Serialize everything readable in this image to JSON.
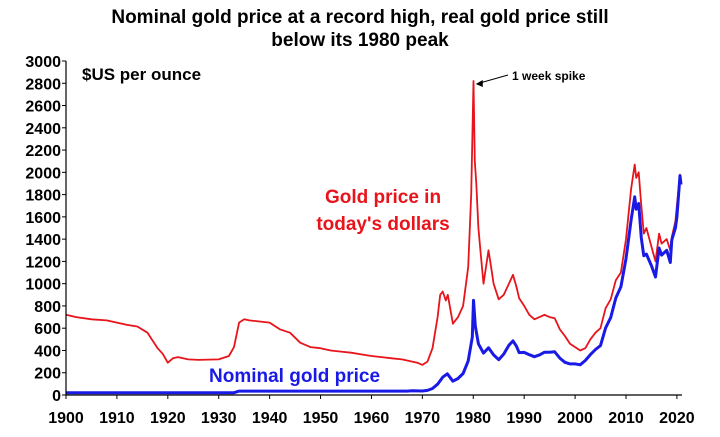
{
  "chart_data": {
    "type": "line",
    "title_line1": "Nominal gold price at a record high, real gold price still",
    "title_line2": "below its 1980 peak",
    "units_label": "$US per ounce",
    "xlim": [
      1900,
      2021
    ],
    "ylim": [
      0,
      3000
    ],
    "x_ticks": [
      1900,
      1910,
      1920,
      1930,
      1940,
      1950,
      1960,
      1970,
      1980,
      1990,
      2000,
      2010,
      2020
    ],
    "y_ticks": [
      0,
      200,
      400,
      600,
      800,
      1000,
      1200,
      1400,
      1600,
      1800,
      2000,
      2200,
      2400,
      2600,
      2800,
      3000
    ],
    "annotation": {
      "text": "1 week spike",
      "x": 1980.1,
      "y": 2820
    },
    "series": [
      {
        "name": "Gold price in today's dollars",
        "label_line1": "Gold price in",
        "label_line2": "today's dollars",
        "color": "#e8141b",
        "points": [
          [
            1900,
            720
          ],
          [
            1902,
            700
          ],
          [
            1905,
            680
          ],
          [
            1908,
            670
          ],
          [
            1910,
            650
          ],
          [
            1912,
            630
          ],
          [
            1914,
            615
          ],
          [
            1916,
            560
          ],
          [
            1918,
            420
          ],
          [
            1919,
            370
          ],
          [
            1920,
            290
          ],
          [
            1921,
            330
          ],
          [
            1922,
            340
          ],
          [
            1924,
            320
          ],
          [
            1926,
            315
          ],
          [
            1928,
            318
          ],
          [
            1930,
            320
          ],
          [
            1932,
            350
          ],
          [
            1933,
            430
          ],
          [
            1934,
            650
          ],
          [
            1935,
            680
          ],
          [
            1936,
            670
          ],
          [
            1938,
            660
          ],
          [
            1940,
            650
          ],
          [
            1942,
            590
          ],
          [
            1944,
            560
          ],
          [
            1946,
            470
          ],
          [
            1948,
            430
          ],
          [
            1950,
            420
          ],
          [
            1952,
            400
          ],
          [
            1954,
            390
          ],
          [
            1956,
            380
          ],
          [
            1958,
            365
          ],
          [
            1960,
            350
          ],
          [
            1962,
            340
          ],
          [
            1964,
            330
          ],
          [
            1966,
            320
          ],
          [
            1968,
            300
          ],
          [
            1969,
            290
          ],
          [
            1970,
            270
          ],
          [
            1971,
            300
          ],
          [
            1972,
            420
          ],
          [
            1973,
            700
          ],
          [
            1973.5,
            900
          ],
          [
            1974,
            930
          ],
          [
            1974.6,
            850
          ],
          [
            1975,
            900
          ],
          [
            1976,
            640
          ],
          [
            1977,
            700
          ],
          [
            1978,
            800
          ],
          [
            1979,
            1150
          ],
          [
            1979.6,
            1800
          ],
          [
            1980.05,
            2820
          ],
          [
            1980.3,
            2100
          ],
          [
            1980.6,
            1900
          ],
          [
            1981,
            1500
          ],
          [
            1981.5,
            1250
          ],
          [
            1982,
            1000
          ],
          [
            1983,
            1300
          ],
          [
            1983.5,
            1150
          ],
          [
            1984,
            1000
          ],
          [
            1985,
            860
          ],
          [
            1986,
            900
          ],
          [
            1987,
            1000
          ],
          [
            1987.8,
            1080
          ],
          [
            1988.5,
            970
          ],
          [
            1989,
            870
          ],
          [
            1990,
            800
          ],
          [
            1991,
            720
          ],
          [
            1992,
            680
          ],
          [
            1993,
            700
          ],
          [
            1994,
            720
          ],
          [
            1995,
            700
          ],
          [
            1996,
            690
          ],
          [
            1997,
            590
          ],
          [
            1998,
            530
          ],
          [
            1999,
            460
          ],
          [
            2000,
            430
          ],
          [
            2001,
            400
          ],
          [
            2002,
            420
          ],
          [
            2003,
            500
          ],
          [
            2004,
            560
          ],
          [
            2005,
            600
          ],
          [
            2006,
            780
          ],
          [
            2007,
            860
          ],
          [
            2008,
            1030
          ],
          [
            2009,
            1100
          ],
          [
            2010,
            1400
          ],
          [
            2011,
            1850
          ],
          [
            2011.7,
            2070
          ],
          [
            2012,
            1950
          ],
          [
            2012.5,
            2000
          ],
          [
            2013,
            1700
          ],
          [
            2013.5,
            1450
          ],
          [
            2014,
            1500
          ],
          [
            2015,
            1330
          ],
          [
            2015.8,
            1200
          ],
          [
            2016.5,
            1450
          ],
          [
            2017,
            1360
          ],
          [
            2018,
            1400
          ],
          [
            2018.7,
            1300
          ],
          [
            2019,
            1420
          ],
          [
            2019.7,
            1560
          ],
          [
            2020,
            1700
          ],
          [
            2020.6,
            1980
          ],
          [
            2020.8,
            1900
          ]
        ]
      },
      {
        "name": "Nominal gold price",
        "label": "Nominal gold price",
        "color": "#1a1ae6",
        "points": [
          [
            1900,
            20.7
          ],
          [
            1933,
            20.7
          ],
          [
            1934,
            35
          ],
          [
            1967,
            35
          ],
          [
            1968,
            39
          ],
          [
            1970,
            36
          ],
          [
            1971,
            41
          ],
          [
            1972,
            58
          ],
          [
            1973,
            97
          ],
          [
            1974,
            160
          ],
          [
            1974.9,
            190
          ],
          [
            1976,
            124
          ],
          [
            1977,
            148
          ],
          [
            1978,
            193
          ],
          [
            1979,
            306
          ],
          [
            1979.8,
            520
          ],
          [
            1980.05,
            850
          ],
          [
            1980.4,
            620
          ],
          [
            1981,
            460
          ],
          [
            1982,
            376
          ],
          [
            1983,
            424
          ],
          [
            1984,
            360
          ],
          [
            1985,
            317
          ],
          [
            1986,
            368
          ],
          [
            1987,
            447
          ],
          [
            1987.8,
            486
          ],
          [
            1988.5,
            437
          ],
          [
            1989,
            381
          ],
          [
            1990,
            383
          ],
          [
            1991,
            362
          ],
          [
            1992,
            344
          ],
          [
            1993,
            360
          ],
          [
            1994,
            384
          ],
          [
            1995,
            384
          ],
          [
            1996,
            388
          ],
          [
            1997,
            331
          ],
          [
            1998,
            294
          ],
          [
            1999,
            279
          ],
          [
            2000,
            279
          ],
          [
            2001,
            271
          ],
          [
            2002,
            310
          ],
          [
            2003,
            363
          ],
          [
            2004,
            409
          ],
          [
            2005,
            444
          ],
          [
            2006,
            603
          ],
          [
            2007,
            695
          ],
          [
            2008,
            871
          ],
          [
            2009,
            972
          ],
          [
            2010,
            1224
          ],
          [
            2011,
            1571
          ],
          [
            2011.7,
            1780
          ],
          [
            2012,
            1669
          ],
          [
            2012.5,
            1720
          ],
          [
            2013,
            1411
          ],
          [
            2013.5,
            1250
          ],
          [
            2014,
            1266
          ],
          [
            2015,
            1160
          ],
          [
            2015.8,
            1060
          ],
          [
            2016.5,
            1320
          ],
          [
            2017,
            1257
          ],
          [
            2018,
            1300
          ],
          [
            2018.7,
            1190
          ],
          [
            2019,
            1393
          ],
          [
            2019.7,
            1500
          ],
          [
            2020,
            1600
          ],
          [
            2020.6,
            1970
          ],
          [
            2020.8,
            1890
          ]
        ]
      }
    ]
  }
}
